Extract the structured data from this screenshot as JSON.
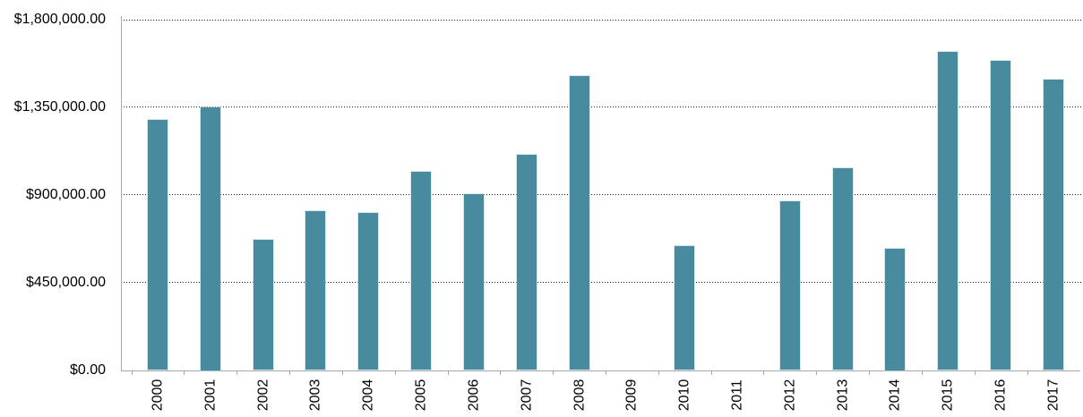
{
  "chart_data": {
    "type": "bar",
    "title": "",
    "xlabel": "",
    "ylabel": "",
    "categories": [
      "2000",
      "2001",
      "2002",
      "2003",
      "2004",
      "2005",
      "2006",
      "2007",
      "2008",
      "2009",
      "2010",
      "2011",
      "2012",
      "2013",
      "2014",
      "2015",
      "2016",
      "2017"
    ],
    "values": [
      1285000,
      1350000,
      670000,
      815000,
      805000,
      1020000,
      905000,
      1105000,
      1510000,
      0,
      635000,
      0,
      865000,
      1035000,
      625000,
      1635000,
      1590000,
      1490000
    ],
    "ylim": [
      0,
      1800000
    ],
    "ytick_values": [
      0,
      450000,
      900000,
      1350000,
      1800000
    ],
    "ytick_labels": [
      "$0.00",
      "$450,000.00",
      "$900,000.00",
      "$1,350,000.00",
      "$1,800,000.00"
    ],
    "grid": "horizontal-dotted",
    "legend_position": "none",
    "colors": {
      "bar": "#488A9E",
      "bar_edge": "#B0D3DD",
      "axis": "#A8A8A8",
      "gridline": "#1A1A1A",
      "text": "#000000",
      "background": "#FFFFFF"
    }
  }
}
